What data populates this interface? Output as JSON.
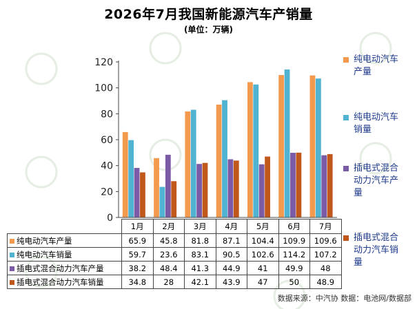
{
  "title": "2026年7月我国新能源汽车产销量",
  "unit": "(单位：万辆)",
  "source": "数据来源：中汽协  数据：电池网/数据部",
  "chart_data": {
    "type": "bar",
    "categories": [
      "1月",
      "2月",
      "3月",
      "4月",
      "5月",
      "6月",
      "7月"
    ],
    "ylim": [
      0,
      120
    ],
    "yticks": [
      0,
      20,
      40,
      60,
      80,
      100,
      120
    ],
    "grid": false,
    "legend_position": "right",
    "series": [
      {
        "name": "纯电动汽车产量",
        "color": "#f39a4f",
        "values": [
          65.9,
          45.8,
          81.8,
          87.1,
          104.4,
          109.9,
          109.6
        ]
      },
      {
        "name": "纯电动汽车销量",
        "color": "#4fb3d1",
        "values": [
          59.7,
          23.6,
          83.1,
          90.5,
          102.6,
          114.2,
          107.2
        ]
      },
      {
        "name": "插电式混合动力汽车产量",
        "color": "#7b5aa6",
        "values": [
          38.2,
          48.4,
          41.3,
          44.9,
          41,
          49.9,
          48
        ]
      },
      {
        "name": "插电式混合动力汽车销量",
        "color": "#c0571b",
        "values": [
          34.8,
          28,
          42.1,
          43.9,
          47,
          50,
          48.9
        ]
      }
    ],
    "legend_labels": [
      [
        "纯电动汽车",
        "产量"
      ],
      [
        "纯电动汽车",
        "销量"
      ],
      [
        "插电式混合",
        "动力汽车产",
        "量"
      ],
      [
        "插电式混合",
        "动力汽车销",
        "量"
      ]
    ]
  }
}
